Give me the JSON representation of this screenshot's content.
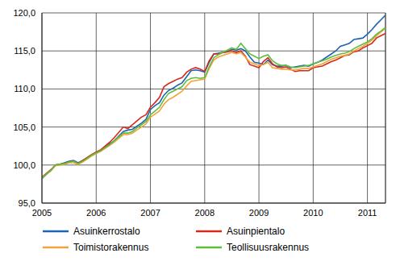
{
  "chart_data": {
    "type": "line",
    "x": [
      2005,
      2005.083,
      2005.167,
      2005.25,
      2005.333,
      2005.417,
      2005.5,
      2005.583,
      2005.667,
      2005.75,
      2005.833,
      2005.917,
      2006,
      2006.083,
      2006.167,
      2006.25,
      2006.333,
      2006.417,
      2006.5,
      2006.583,
      2006.667,
      2006.75,
      2006.833,
      2006.917,
      2007,
      2007.083,
      2007.167,
      2007.25,
      2007.333,
      2007.417,
      2007.5,
      2007.583,
      2007.667,
      2007.75,
      2007.833,
      2007.917,
      2008,
      2008.083,
      2008.167,
      2008.25,
      2008.333,
      2008.417,
      2008.5,
      2008.583,
      2008.667,
      2008.75,
      2008.833,
      2008.917,
      2009,
      2009.083,
      2009.167,
      2009.25,
      2009.333,
      2009.417,
      2009.5,
      2009.583,
      2009.667,
      2009.75,
      2009.833,
      2009.917,
      2010,
      2010.083,
      2010.167,
      2010.25,
      2010.333,
      2010.417,
      2010.5,
      2010.583,
      2010.667,
      2010.75,
      2010.833,
      2010.917,
      2011,
      2011.083,
      2011.167,
      2011.25,
      2011.333
    ],
    "series": [
      {
        "name": "Asuinkerrostalo",
        "color": "#1f64b0",
        "values": [
          98.2,
          98.8,
          99.3,
          100.0,
          100.1,
          100.3,
          100.5,
          100.6,
          100.3,
          100.6,
          100.9,
          101.3,
          101.6,
          101.9,
          102.3,
          102.8,
          103.2,
          103.8,
          104.4,
          104.6,
          104.7,
          105.1,
          105.5,
          106.0,
          107.3,
          107.8,
          108.2,
          109.2,
          109.8,
          110.1,
          110.5,
          110.8,
          111.6,
          112.4,
          112.5,
          112.4,
          112.2,
          113.5,
          114.6,
          114.7,
          114.8,
          114.9,
          115.2,
          115.1,
          115.3,
          115.0,
          114.2,
          113.5,
          113.4,
          113.2,
          113.8,
          113.2,
          113.0,
          113.0,
          113.1,
          112.8,
          112.9,
          113.0,
          113.1,
          113.0,
          113.3,
          113.5,
          113.8,
          114.2,
          114.6,
          115.0,
          115.6,
          115.8,
          116.0,
          116.5,
          116.6,
          116.7,
          117.2,
          117.8,
          118.5,
          119.1,
          119.7
        ]
      },
      {
        "name": "Asuinpientalo",
        "color": "#d42a1c",
        "values": [
          98.4,
          98.9,
          99.4,
          100.0,
          100.1,
          100.2,
          100.4,
          100.5,
          100.2,
          100.6,
          101.0,
          101.4,
          101.7,
          102.0,
          102.5,
          103.0,
          103.6,
          104.3,
          105.0,
          104.8,
          105.3,
          105.8,
          106.3,
          106.6,
          107.6,
          108.2,
          108.9,
          110.3,
          110.7,
          111.0,
          111.3,
          111.5,
          112.2,
          112.6,
          112.8,
          112.6,
          112.3,
          113.7,
          114.6,
          114.6,
          114.8,
          114.9,
          115.0,
          114.8,
          115.0,
          114.3,
          113.2,
          113.0,
          112.8,
          113.6,
          114.1,
          113.3,
          112.9,
          112.8,
          112.9,
          112.6,
          112.3,
          112.4,
          112.4,
          112.4,
          112.8,
          112.9,
          113.0,
          113.3,
          113.6,
          113.8,
          114.1,
          114.4,
          114.5,
          114.9,
          115.0,
          115.4,
          115.7,
          116.0,
          116.7,
          117.0,
          117.3
        ]
      },
      {
        "name": "Toimistorakennus",
        "color": "#f2a33a",
        "values": [
          98.3,
          98.8,
          99.3,
          99.9,
          100.0,
          100.1,
          100.3,
          100.3,
          100.1,
          100.4,
          100.8,
          101.2,
          101.5,
          101.8,
          102.2,
          102.6,
          103.0,
          103.5,
          104.0,
          104.0,
          104.2,
          104.6,
          105.0,
          105.4,
          106.3,
          106.7,
          107.1,
          108.0,
          108.6,
          108.9,
          109.3,
          109.7,
          110.4,
          111.0,
          111.1,
          111.2,
          111.3,
          112.7,
          113.8,
          114.2,
          114.4,
          114.6,
          114.8,
          114.6,
          114.8,
          114.2,
          113.5,
          113.3,
          113.1,
          113.2,
          113.5,
          112.8,
          112.7,
          112.6,
          112.6,
          112.5,
          112.5,
          112.6,
          112.7,
          112.7,
          112.9,
          113.1,
          113.3,
          113.6,
          113.9,
          114.1,
          114.3,
          114.4,
          114.6,
          115.0,
          115.3,
          115.6,
          116.0,
          116.4,
          117.0,
          117.5,
          118.0
        ]
      },
      {
        "name": "Teollisuusrakennus",
        "color": "#5cbf3c",
        "values": [
          98.3,
          98.8,
          99.3,
          100.0,
          100.1,
          100.2,
          100.4,
          100.5,
          100.2,
          100.5,
          100.9,
          101.3,
          101.6,
          101.9,
          102.3,
          102.7,
          103.2,
          103.7,
          104.2,
          104.2,
          104.4,
          104.9,
          105.3,
          105.7,
          106.6,
          107.1,
          107.6,
          108.6,
          109.4,
          109.7,
          110.0,
          110.3,
          111.1,
          111.4,
          111.5,
          111.4,
          111.5,
          112.9,
          114.1,
          114.5,
          114.8,
          115.1,
          115.4,
          115.2,
          116.0,
          115.3,
          114.6,
          114.3,
          114.0,
          114.3,
          114.5,
          113.7,
          113.3,
          113.1,
          113.1,
          112.9,
          112.8,
          112.9,
          113.0,
          113.1,
          113.3,
          113.5,
          113.7,
          113.9,
          114.2,
          114.4,
          114.6,
          114.7,
          114.9,
          115.3,
          115.6,
          115.9,
          116.2,
          116.6,
          117.2,
          117.6,
          118.1
        ]
      }
    ],
    "xlim": [
      2005,
      2011.333
    ],
    "xticks": [
      2005,
      2006,
      2007,
      2008,
      2009,
      2010,
      2011
    ],
    "ylim": [
      95,
      120
    ],
    "yticks": [
      {
        "value": 95,
        "label": "95,0"
      },
      {
        "value": 100,
        "label": "100,0"
      },
      {
        "value": 105,
        "label": "105,0"
      },
      {
        "value": 110,
        "label": "110,0"
      },
      {
        "value": 115,
        "label": "115,0"
      },
      {
        "value": 120,
        "label": "120,0"
      }
    ],
    "grid": true,
    "legend": "bottom"
  }
}
